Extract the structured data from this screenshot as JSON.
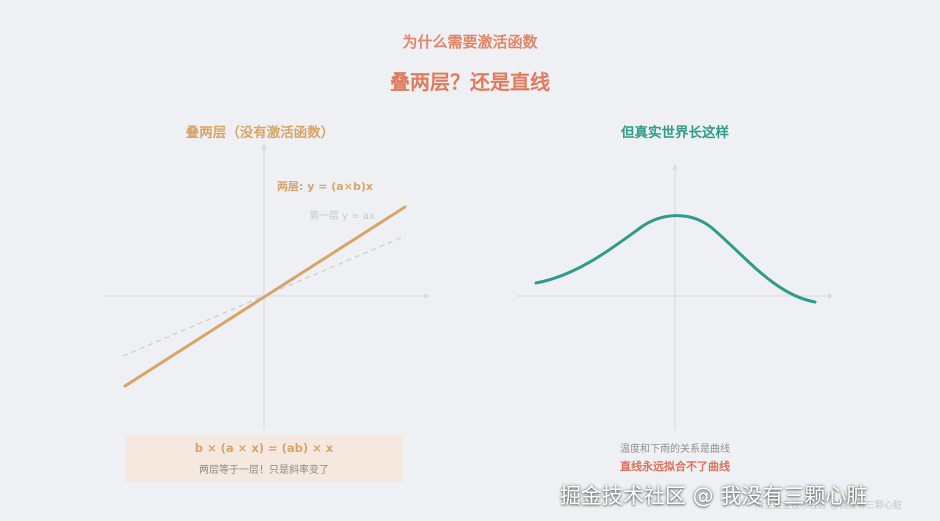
{
  "header": {
    "kicker": "为什么需要激活函数",
    "headline": "叠两层？还是直线"
  },
  "left_panel": {
    "title": "叠两层（没有激活函数）",
    "label_two_layers": "两层: y = (a×b)x",
    "label_one_layer": "第一层  y = ax",
    "formula": "b × (a × x) = (ab) × x",
    "note": "两层等于一层！只是斜率变了",
    "colors": {
      "two_layers": "#d7a56a",
      "one_layer": "#cfcfcf",
      "axes": "#dcdde2"
    }
  },
  "right_panel": {
    "title": "但真实世界长这样",
    "note": "温度和下雨的关系是曲线",
    "emphasis": "直线永远拟合不了曲线",
    "colors": {
      "curve": "#2f9c89"
    }
  },
  "watermark": {
    "main": "掘金技术社区 @ 我没有三颗心脏",
    "faint": "稀土掘金技术社区 @我没有三颗心脏"
  }
}
